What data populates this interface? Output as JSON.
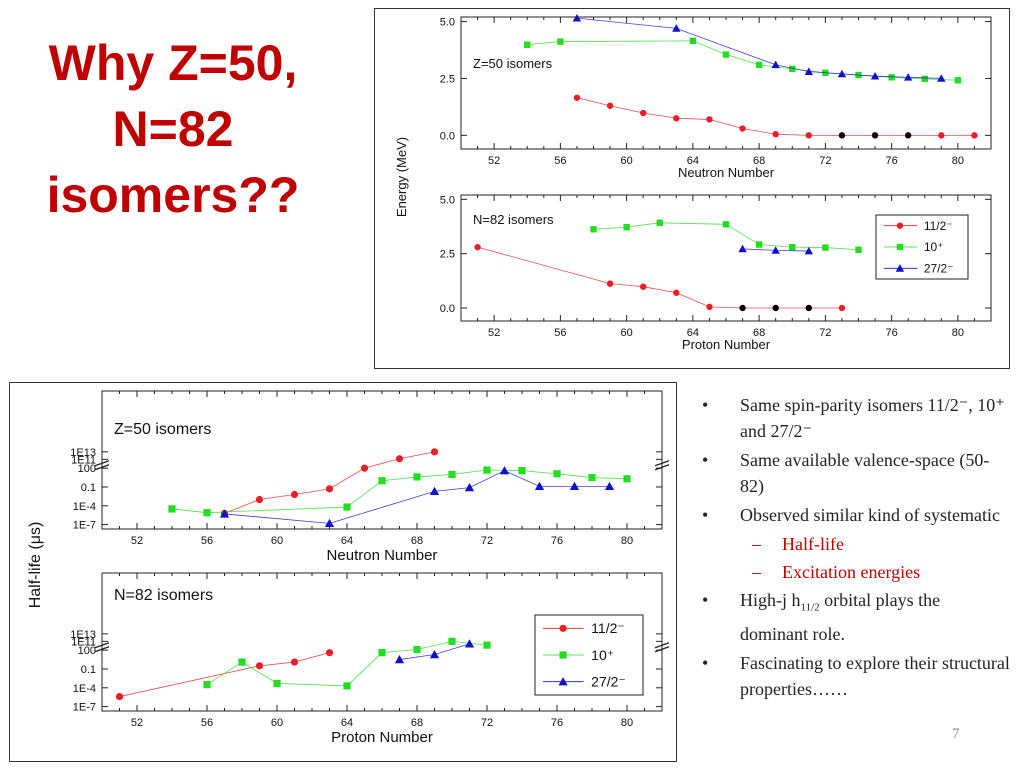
{
  "slide": {
    "title": "Why Z=50, N=82 isomers??",
    "page_number": "7",
    "bullets": [
      {
        "text": "Same spin-parity isomers 11/2⁻, 10⁺ and 27/2⁻"
      },
      {
        "text": "Same available valence-space (50-82)"
      },
      {
        "text": "Observed similar kind of systematic"
      },
      {
        "text": "Half-life",
        "sub": true
      },
      {
        "text": "Excitation energies",
        "sub": true
      },
      {
        "text": "High-j h11/2 orbital plays the dominant role.",
        "prefix": "High-j h",
        "subscript": "11/2",
        "suffix": " orbital plays the dominant role."
      },
      {
        "text": "Fascinating to explore their structural properties……"
      }
    ]
  },
  "colors": {
    "title": "#c00000",
    "red": "#ee1c25",
    "green": "#22dd22",
    "blue": "#1010cc",
    "black": "#000000"
  },
  "legend": {
    "labels": [
      "11/2⁻",
      "10⁺",
      "27/2⁻"
    ]
  },
  "chart_data": [
    {
      "type": "scatter",
      "panel": "energy-top",
      "annotation": "Z=50 isomers",
      "xlabel": "Neutron Number",
      "ylabel": "Energy (MeV)",
      "xlim": [
        50,
        82
      ],
      "ylim": [
        -0.6,
        5.2
      ],
      "xticks": [
        52,
        56,
        60,
        64,
        68,
        72,
        76,
        80
      ],
      "yticks": [
        {
          "v": 0,
          "t": "0.0"
        },
        {
          "v": 2.5,
          "t": "2.5"
        },
        {
          "v": 5,
          "t": "5.0"
        }
      ],
      "series": [
        {
          "name": "11/2⁻",
          "marker": "circle",
          "color": "#ee1c25",
          "points": [
            [
              57,
              1.65
            ],
            [
              59,
              1.3
            ],
            [
              61,
              0.98
            ],
            [
              63,
              0.75
            ],
            [
              65,
              0.7
            ],
            [
              67,
              0.3
            ],
            [
              69,
              0.05
            ],
            [
              71,
              0
            ],
            [
              73,
              0
            ],
            [
              75,
              0
            ],
            [
              77,
              0
            ],
            [
              79,
              0
            ],
            [
              81,
              0
            ]
          ],
          "black_from_x": 73,
          "black_to_x": 77
        },
        {
          "name": "10⁺",
          "marker": "square",
          "color": "#22dd22",
          "points": [
            [
              54,
              3.98
            ],
            [
              56,
              4.12
            ],
            [
              64,
              4.15
            ],
            [
              66,
              3.55
            ],
            [
              68,
              3.1
            ],
            [
              70,
              2.92
            ],
            [
              72,
              2.75
            ],
            [
              74,
              2.65
            ],
            [
              76,
              2.55
            ],
            [
              78,
              2.48
            ],
            [
              80,
              2.42
            ]
          ]
        },
        {
          "name": "27/2⁻",
          "marker": "triangle",
          "color": "#1010cc",
          "points": [
            [
              57,
              5.15
            ],
            [
              63,
              4.7
            ],
            [
              69,
              3.1
            ],
            [
              71,
              2.8
            ],
            [
              73,
              2.7
            ],
            [
              75,
              2.6
            ],
            [
              77,
              2.55
            ],
            [
              79,
              2.5
            ]
          ]
        }
      ]
    },
    {
      "type": "scatter",
      "panel": "energy-bottom",
      "annotation": "N=82 isomers",
      "xlabel": "Proton Number",
      "xlim": [
        50,
        82
      ],
      "ylim": [
        -0.6,
        5.2
      ],
      "xticks": [
        52,
        56,
        60,
        64,
        68,
        72,
        76,
        80
      ],
      "yticks": [
        {
          "v": 0,
          "t": "0.0"
        },
        {
          "v": 2.5,
          "t": "2.5"
        },
        {
          "v": 5,
          "t": "5.0"
        }
      ],
      "series": [
        {
          "name": "11/2⁻",
          "marker": "circle",
          "color": "#ee1c25",
          "points": [
            [
              51,
              2.8
            ],
            [
              59,
              1.12
            ],
            [
              61,
              0.98
            ],
            [
              63,
              0.7
            ],
            [
              65,
              0.05
            ],
            [
              67,
              0
            ],
            [
              69,
              0
            ],
            [
              71,
              0
            ],
            [
              73,
              0
            ]
          ],
          "black_from_x": 67,
          "black_to_x": 71
        },
        {
          "name": "10⁺",
          "marker": "square",
          "color": "#22dd22",
          "points": [
            [
              58,
              3.62
            ],
            [
              60,
              3.72
            ],
            [
              62,
              3.92
            ],
            [
              66,
              3.85
            ],
            [
              68,
              2.92
            ],
            [
              70,
              2.8
            ],
            [
              72,
              2.78
            ],
            [
              74,
              2.68
            ]
          ]
        },
        {
          "name": "27/2⁻",
          "marker": "triangle",
          "color": "#1010cc",
          "points": [
            [
              67,
              2.72
            ],
            [
              69,
              2.65
            ],
            [
              71,
              2.62
            ]
          ]
        }
      ]
    },
    {
      "type": "scatter",
      "panel": "halflife-top",
      "annotation": "Z=50 isomers",
      "xlabel": "Neutron Number",
      "ylabel": "Half-life (μs)",
      "xlim": [
        50,
        82
      ],
      "ylim": [
        -7,
        15.0
      ],
      "xticks": [
        52,
        56,
        60,
        64,
        68,
        72,
        76,
        80
      ],
      "yticks": [
        {
          "v": -6.3,
          "t": "1E-7"
        },
        {
          "v": -3.3,
          "t": "1E-4"
        },
        {
          "v": -0.3,
          "t": "0.1"
        },
        {
          "v": 2.7,
          "t": "100"
        },
        {
          "v": 4.1,
          "t": "1E11"
        },
        {
          "v": 5.3,
          "t": "1E13"
        }
      ],
      "series": [
        {
          "name": "11/2⁻",
          "marker": "circle",
          "color": "#ee1c25",
          "points": [
            [
              57,
              -4.5
            ],
            [
              59,
              -2.3
            ],
            [
              61,
              -1.5
            ],
            [
              63,
              -0.6
            ],
            [
              65,
              2.7
            ],
            [
              67,
              4.2
            ],
            [
              69,
              5.3
            ]
          ]
        },
        {
          "name": "10⁺",
          "marker": "square",
          "color": "#22dd22",
          "points": [
            [
              54,
              -3.8
            ],
            [
              56,
              -4.4
            ],
            [
              64,
              -3.5
            ],
            [
              66,
              0.7
            ],
            [
              68,
              1.3
            ],
            [
              70,
              1.7
            ],
            [
              72,
              2.4
            ],
            [
              74,
              2.3
            ],
            [
              76,
              1.8
            ],
            [
              78,
              1.2
            ],
            [
              80,
              1.0
            ]
          ]
        },
        {
          "name": "27/2⁻",
          "marker": "triangle",
          "color": "#1010cc",
          "points": [
            [
              57,
              -4.6
            ],
            [
              63,
              -6.1
            ],
            [
              69,
              -1.0
            ],
            [
              71,
              -0.4
            ],
            [
              73,
              2.3
            ],
            [
              75,
              -0.2
            ],
            [
              77,
              -0.2
            ],
            [
              79,
              -0.2
            ]
          ]
        }
      ]
    },
    {
      "type": "scatter",
      "panel": "halflife-bottom",
      "annotation": "N=82 isomers",
      "xlabel": "Proton Number",
      "xlim": [
        50,
        82
      ],
      "ylim": [
        -7,
        15.0
      ],
      "xticks": [
        52,
        56,
        60,
        64,
        68,
        72,
        76,
        80
      ],
      "yticks": [
        {
          "v": -6.3,
          "t": "1E-7"
        },
        {
          "v": -3.3,
          "t": "1E-4"
        },
        {
          "v": -0.3,
          "t": "0.1"
        },
        {
          "v": 2.7,
          "t": "100"
        },
        {
          "v": 4.1,
          "t": "1E11"
        },
        {
          "v": 5.3,
          "t": "1E13"
        }
      ],
      "series": [
        {
          "name": "11/2⁻",
          "marker": "circle",
          "color": "#ee1c25",
          "points": [
            [
              51,
              -4.7
            ],
            [
              59,
              0.2
            ],
            [
              61,
              0.8
            ],
            [
              63,
              2.3
            ]
          ]
        },
        {
          "name": "10⁺",
          "marker": "square",
          "color": "#22dd22",
          "points": [
            [
              56,
              -2.8
            ],
            [
              58,
              0.8
            ],
            [
              60,
              -2.6
            ],
            [
              64,
              -3.0
            ],
            [
              66,
              2.3
            ],
            [
              68,
              2.8
            ],
            [
              70,
              4.1
            ],
            [
              72,
              3.5
            ]
          ]
        },
        {
          "name": "27/2⁻",
          "marker": "triangle",
          "color": "#1010cc",
          "points": [
            [
              67,
              1.2
            ],
            [
              69,
              2.0
            ],
            [
              71,
              3.7
            ]
          ]
        }
      ]
    }
  ]
}
